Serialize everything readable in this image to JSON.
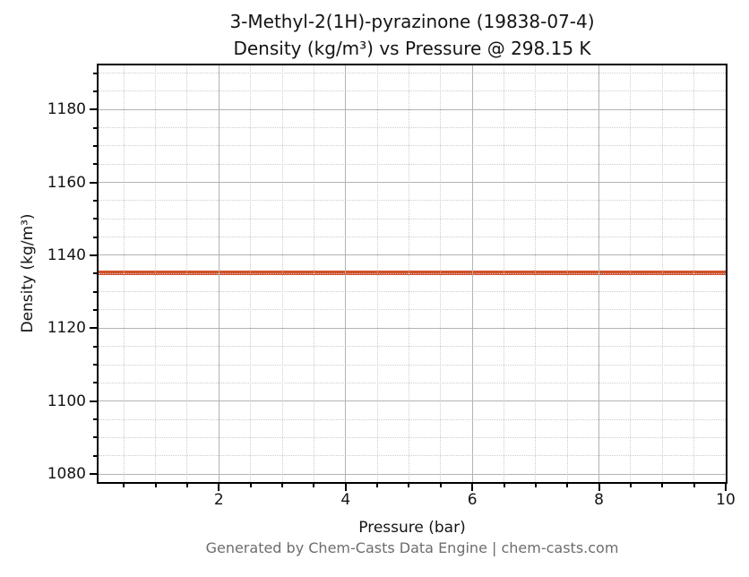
{
  "chart_data": {
    "type": "line",
    "title": "3-Methyl-2(1H)-pyrazinone (19838-07-4)",
    "subtitle": "Density (kg/m³) vs Pressure @ 298.15 K",
    "xlabel": "Pressure (bar)",
    "ylabel": "Density (kg/m³)",
    "footer": "Generated by Chem-Casts Data Engine | chem-casts.com",
    "xlim": [
      0.1,
      10.0
    ],
    "ylim": [
      1077.8,
      1192.1
    ],
    "xticks": [
      2,
      4,
      6,
      8,
      10
    ],
    "yticks": [
      1080,
      1100,
      1120,
      1140,
      1160,
      1180
    ],
    "x_minor_step": 0.5,
    "y_minor_step": 5,
    "grid": {
      "major": true,
      "minor": true
    },
    "legend": null,
    "series": [
      {
        "name": "Density",
        "color": "#d2512a",
        "linewidth": 5,
        "x": [
          0.1,
          10.0
        ],
        "y": [
          1135.2,
          1135.2
        ]
      }
    ],
    "colors": {
      "line": "#d2512a",
      "major_grid": "#b3b3b3",
      "minor_grid": "#cccccc",
      "spine": "#000000",
      "text": "#141414",
      "footer_text": "#6d6d6d",
      "background": "#ffffff"
    }
  }
}
